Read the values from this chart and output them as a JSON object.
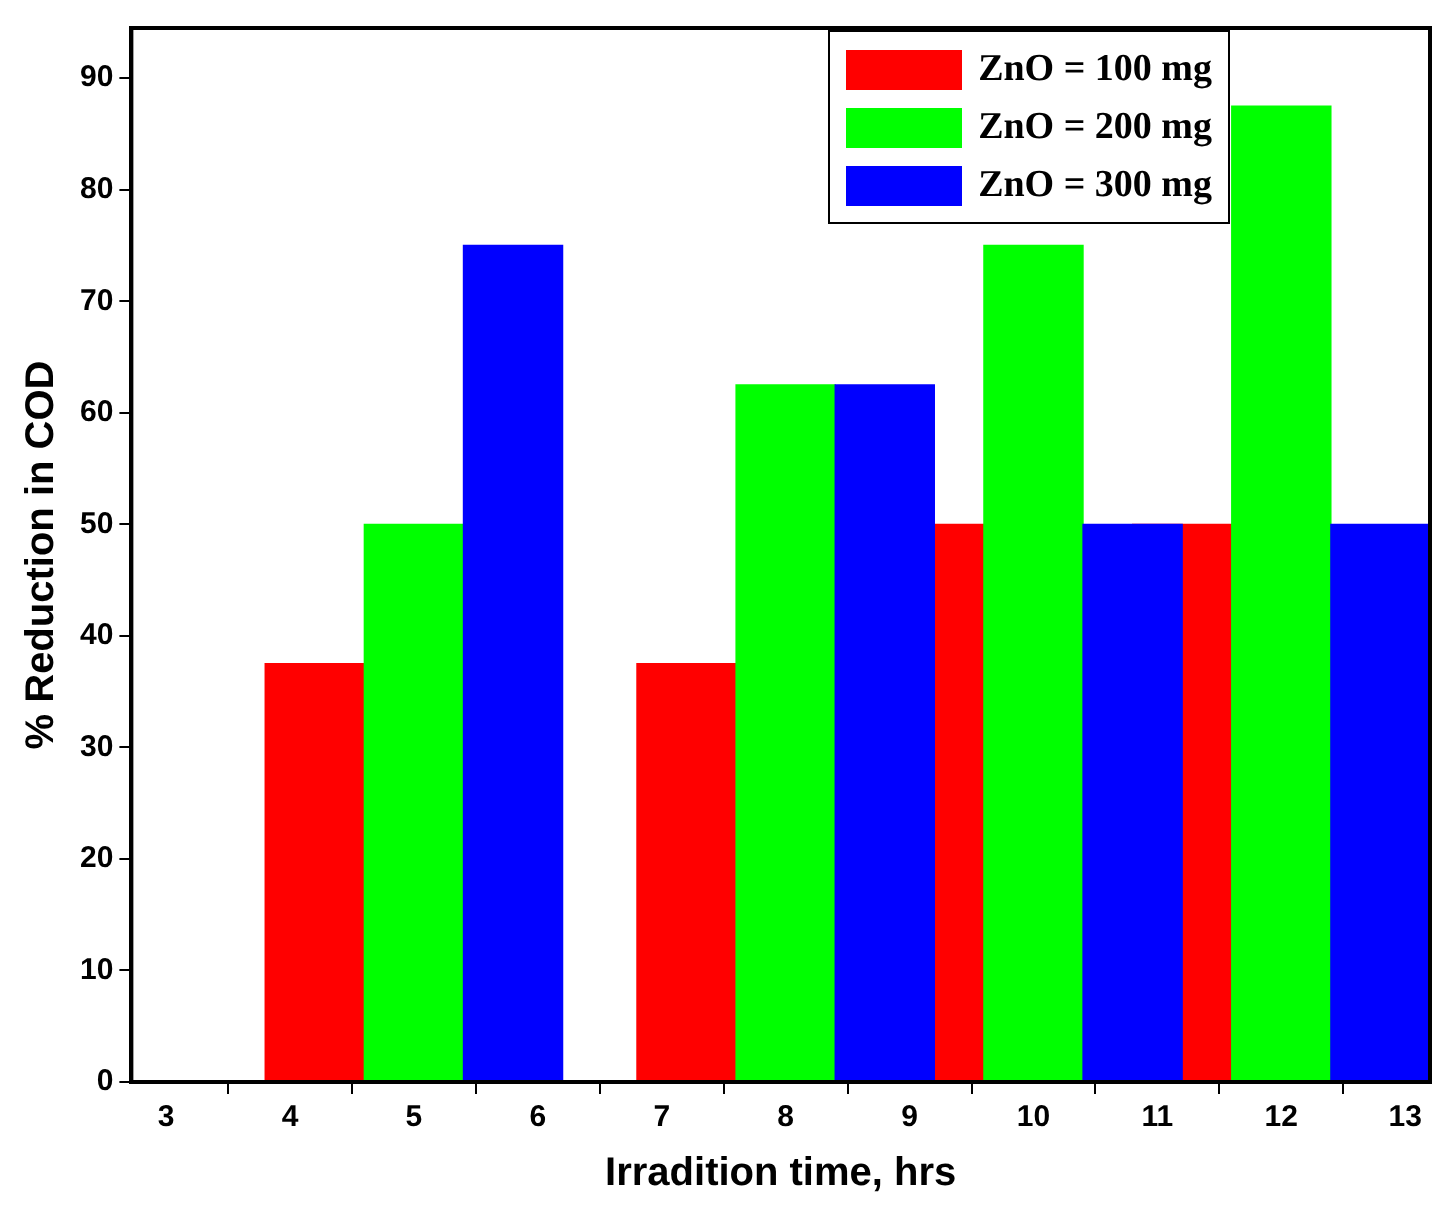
{
  "chart_data": {
    "type": "bar",
    "xlabel": "Irradition time, hrs",
    "ylabel": "% Reduction in COD",
    "series": [
      {
        "name": "ZnO = 100 mg",
        "color": "#ff0000",
        "x": [
          4.2,
          7.2,
          9.2,
          11.2
        ],
        "values": [
          37.5,
          37.5,
          50,
          50
        ]
      },
      {
        "name": "ZnO = 200 mg",
        "color": "#00ff00",
        "x": [
          5,
          8,
          10,
          12
        ],
        "values": [
          50,
          62.5,
          75,
          87.5
        ]
      },
      {
        "name": "ZnO = 300 mg",
        "color": "#0000ff",
        "x": [
          5.8,
          8.8,
          10.8,
          12.8
        ],
        "values": [
          75,
          62.5,
          50,
          50
        ]
      }
    ],
    "xlim": [
      2.72,
      13.2
    ],
    "xticks": [
      3,
      4,
      5,
      6,
      7,
      8,
      9,
      10,
      11,
      12,
      13
    ],
    "ylim": [
      0,
      94.5
    ],
    "yticks": [
      0,
      10,
      20,
      30,
      40,
      50,
      60,
      70,
      80,
      90
    ],
    "grid": false,
    "legend": "top right"
  }
}
